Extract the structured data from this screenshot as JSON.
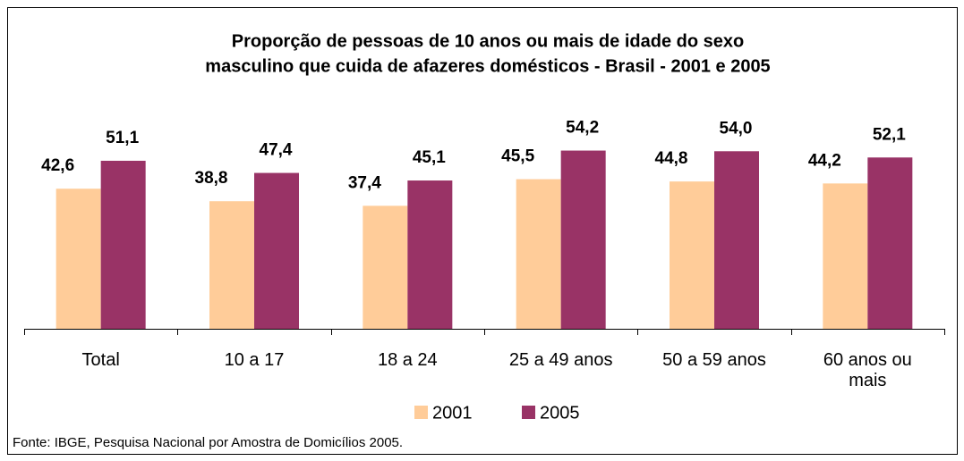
{
  "chart_data": {
    "type": "bar",
    "title": [
      "Proporção de pessoas de 10 anos ou mais de idade do sexo",
      "masculino que cuida de afazeres domésticos - Brasil - 2001 e 2005"
    ],
    "categories": [
      "Total",
      "10 a 17",
      "18 a 24",
      "25 a 49 anos",
      "50 a 59 anos",
      "60 anos ou mais"
    ],
    "series": [
      {
        "name": "2001",
        "color": "#ffcc99",
        "values": [
          42.6,
          38.8,
          37.4,
          45.5,
          44.8,
          44.2
        ],
        "value_labels": [
          "42,6",
          "38,8",
          "37,4",
          "45,5",
          "44,8",
          "44,2"
        ]
      },
      {
        "name": "2005",
        "color": "#993366",
        "values": [
          51.1,
          47.4,
          45.1,
          54.2,
          54.0,
          52.1
        ],
        "value_labels": [
          "51,1",
          "47,4",
          "45,1",
          "54,2",
          "54,0",
          "52,1"
        ]
      }
    ],
    "legend": "bottom",
    "source": "Fonte: IBGE, Pesquisa Nacional por Amostra de Domicílios 2005."
  }
}
